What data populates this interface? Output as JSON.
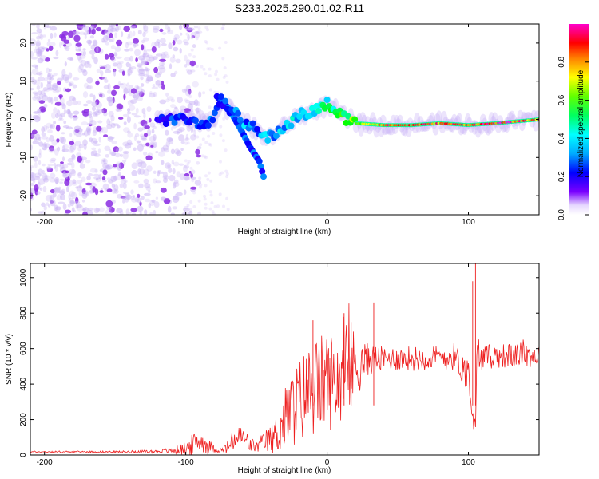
{
  "title": "S233.2025.290.01.02.R11",
  "chart_data": [
    {
      "type": "heatmap",
      "xlabel": "Height of straight line (km)",
      "ylabel": "Frequency (Hz)",
      "xlim": [
        -210,
        150
      ],
      "ylim": [
        -25,
        25
      ],
      "xticks": [
        -200,
        -100,
        0,
        100
      ],
      "yticks": [
        20,
        10,
        0,
        -10,
        -20
      ],
      "xtick_labels": [
        "-200",
        "-100",
        "0",
        "100"
      ],
      "ytick_labels": [
        "20",
        "10",
        "0",
        "-10",
        "-20"
      ],
      "colorbar": {
        "label": "Normalized spectral amplitude",
        "range": [
          0,
          1
        ],
        "ticks": [
          0.0,
          0.2,
          0.4,
          0.6,
          0.8
        ],
        "tick_labels": [
          "0.0",
          "0.2",
          "0.4",
          "0.6",
          "0.8"
        ],
        "colormap": [
          "#ffffff",
          "#7a00ff",
          "#0000ff",
          "#00ffff",
          "#00ff00",
          "#ffff00",
          "#ff8000",
          "#ff0000",
          "#ff00ff"
        ]
      },
      "ridge": {
        "x": [
          -120,
          -100,
          -90,
          -80,
          -75,
          -70,
          -60,
          -50,
          -42,
          -30,
          -20,
          -10,
          0,
          10,
          20,
          40,
          60,
          80,
          100,
          120,
          150
        ],
        "y": [
          0,
          0,
          -1,
          0,
          5,
          3,
          0,
          -3,
          -5,
          -2,
          1,
          2,
          4,
          1,
          -1,
          -1.5,
          -1.5,
          -1,
          -1.5,
          -1,
          0
        ],
        "amplitude": [
          0.25,
          0.3,
          0.3,
          0.3,
          0.25,
          0.3,
          0.35,
          0.3,
          0.35,
          0.35,
          0.4,
          0.4,
          0.45,
          0.5,
          0.6,
          0.85,
          0.9,
          0.85,
          0.9,
          0.95,
          0.8
        ]
      },
      "branch": {
        "x": [
          -78,
          -70,
          -62,
          -55,
          -48,
          -45
        ],
        "y": [
          6,
          3,
          -2,
          -7,
          -11,
          -15
        ]
      },
      "noise_region": [
        -210,
        -100
      ]
    },
    {
      "type": "line",
      "xlabel": "Height of straight line (km)",
      "ylabel": "SNR (10 * v/v)",
      "xlim": [
        -210,
        150
      ],
      "ylim": [
        0,
        1080
      ],
      "xticks": [
        -200,
        -100,
        0,
        100
      ],
      "yticks": [
        0,
        200,
        400,
        600,
        800,
        1000
      ],
      "xtick_labels": [
        "-200",
        "-100",
        "0",
        "100"
      ],
      "ytick_labels": [
        "0",
        "200",
        "400",
        "600",
        "800",
        "1000"
      ],
      "series": [
        {
          "name": "SNR",
          "color": "#ee2020",
          "x": [
            -210,
            -180,
            -150,
            -125,
            -110,
            -100,
            -95,
            -90,
            -85,
            -80,
            -75,
            -70,
            -65,
            -60,
            -55,
            -50,
            -45,
            -40,
            -35,
            -30,
            -25,
            -20,
            -15,
            -10,
            -5,
            0,
            5,
            10,
            15,
            20,
            25,
            30,
            35,
            40,
            50,
            60,
            70,
            80,
            90,
            100,
            103,
            105,
            106,
            108,
            110,
            120,
            130,
            140,
            150
          ],
          "y": [
            18,
            18,
            18,
            20,
            25,
            35,
            60,
            80,
            55,
            35,
            25,
            45,
            90,
            100,
            60,
            45,
            70,
            90,
            120,
            200,
            260,
            300,
            350,
            370,
            400,
            420,
            420,
            450,
            470,
            500,
            520,
            540,
            540,
            540,
            545,
            545,
            545,
            550,
            555,
            450,
            250,
            120,
            550,
            560,
            550,
            560,
            560,
            565,
            560
          ],
          "noise": [
            5,
            5,
            5,
            8,
            15,
            40,
            60,
            60,
            50,
            20,
            15,
            40,
            70,
            70,
            50,
            30,
            60,
            80,
            120,
            180,
            220,
            240,
            260,
            280,
            280,
            280,
            280,
            260,
            240,
            220,
            120,
            90,
            80,
            70,
            70,
            70,
            70,
            70,
            80,
            100,
            120,
            60,
            160,
            100,
            70,
            70,
            70,
            70,
            70
          ]
        }
      ],
      "peaks": [
        {
          "x": 105,
          "y": 1080
        },
        {
          "x": 103,
          "y": 980
        },
        {
          "x": 12,
          "y": 800
        },
        {
          "x": 33,
          "y": 860
        },
        {
          "x": -10,
          "y": 760
        },
        {
          "x": 17,
          "y": 750
        }
      ]
    }
  ]
}
